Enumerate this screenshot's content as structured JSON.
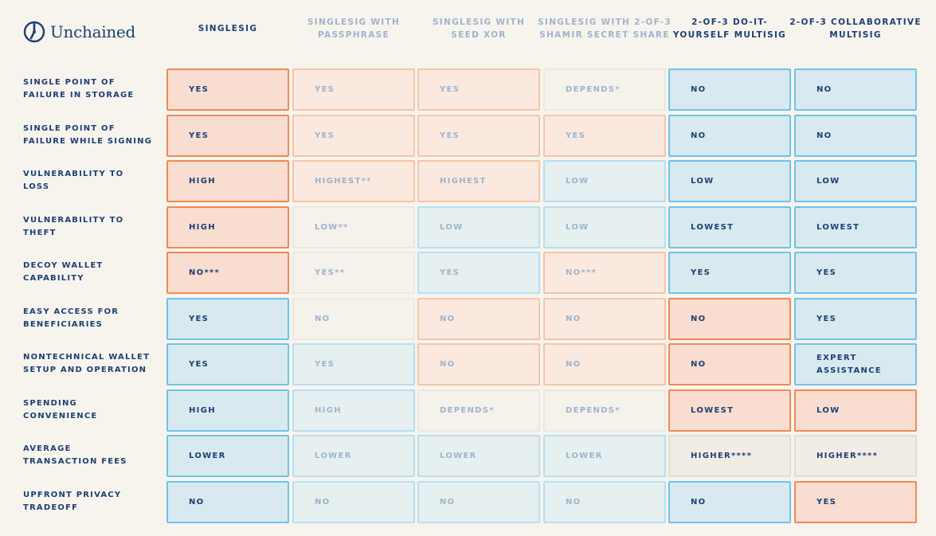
{
  "brand": {
    "name": "Unchained",
    "logo_icon": "unchained-logo-icon"
  },
  "columns": [
    {
      "label": "SINGLESIG",
      "style": "strong"
    },
    {
      "label": "SINGLESIG WITH PASSPHRASE",
      "style": "dim"
    },
    {
      "label": "SINGLESIG WITH SEED XOR",
      "style": "dim"
    },
    {
      "label": "SINGLESIG WITH  2-OF-3 SHAMIR SECRET SHARE",
      "style": "dim"
    },
    {
      "label": "2-OF-3 DO-IT-YOURSELF MULTISIG",
      "style": "strong"
    },
    {
      "label": "2-OF-3 COLLABORATIVE MULTISIG",
      "style": "strong"
    }
  ],
  "rows": [
    {
      "label": "SINGLE POINT OF FAILURE IN STORAGE",
      "cells": [
        {
          "value": "YES",
          "tone": "orange",
          "dim": false
        },
        {
          "value": "YES",
          "tone": "orange",
          "dim": true
        },
        {
          "value": "YES",
          "tone": "orange",
          "dim": true
        },
        {
          "value": "DEPENDS*",
          "tone": "beige",
          "dim": true
        },
        {
          "value": "NO",
          "tone": "blue",
          "dim": false
        },
        {
          "value": "NO",
          "tone": "blue",
          "dim": false
        }
      ]
    },
    {
      "label": "SINGLE POINT OF FAILURE WHILE SIGNING",
      "cells": [
        {
          "value": "YES",
          "tone": "orange",
          "dim": false
        },
        {
          "value": "YES",
          "tone": "orange",
          "dim": true
        },
        {
          "value": "YES",
          "tone": "orange",
          "dim": true
        },
        {
          "value": "YES",
          "tone": "orange",
          "dim": true
        },
        {
          "value": "NO",
          "tone": "blue",
          "dim": false
        },
        {
          "value": "NO",
          "tone": "blue",
          "dim": false
        }
      ]
    },
    {
      "label": "VULNERABILITY TO LOSS",
      "cells": [
        {
          "value": "HIGH",
          "tone": "orange",
          "dim": false
        },
        {
          "value": "HIGHEST**",
          "tone": "orange",
          "dim": true
        },
        {
          "value": "HIGHEST",
          "tone": "orange",
          "dim": true
        },
        {
          "value": "LOW",
          "tone": "blue",
          "dim": true
        },
        {
          "value": "LOW",
          "tone": "blue",
          "dim": false
        },
        {
          "value": "LOW",
          "tone": "blue",
          "dim": false
        }
      ]
    },
    {
      "label": "VULNERABILITY TO THEFT",
      "cells": [
        {
          "value": "HIGH",
          "tone": "orange",
          "dim": false
        },
        {
          "value": "LOW**",
          "tone": "beige",
          "dim": true
        },
        {
          "value": "LOW",
          "tone": "blue",
          "dim": true
        },
        {
          "value": "LOW",
          "tone": "blue",
          "dim": true
        },
        {
          "value": "LOWEST",
          "tone": "blue",
          "dim": false
        },
        {
          "value": "LOWEST",
          "tone": "blue",
          "dim": false
        }
      ]
    },
    {
      "label": "DECOY WALLET CAPABILITY",
      "cells": [
        {
          "value": "NO***",
          "tone": "orange",
          "dim": false
        },
        {
          "value": "YES**",
          "tone": "beige",
          "dim": true
        },
        {
          "value": "YES",
          "tone": "blue",
          "dim": true
        },
        {
          "value": "NO***",
          "tone": "orange",
          "dim": true
        },
        {
          "value": "YES",
          "tone": "blue",
          "dim": false
        },
        {
          "value": "YES",
          "tone": "blue",
          "dim": false
        }
      ]
    },
    {
      "label": "EASY ACCESS FOR BENEFICIARIES",
      "cells": [
        {
          "value": "YES",
          "tone": "blue",
          "dim": false
        },
        {
          "value": "NO",
          "tone": "beige",
          "dim": true
        },
        {
          "value": "NO",
          "tone": "orange",
          "dim": true
        },
        {
          "value": "NO",
          "tone": "orange",
          "dim": true
        },
        {
          "value": "NO",
          "tone": "orange",
          "dim": false
        },
        {
          "value": "YES",
          "tone": "blue",
          "dim": false
        }
      ]
    },
    {
      "label": "NONTECHNICAL WALLET SETUP AND OPERATION",
      "cells": [
        {
          "value": "YES",
          "tone": "blue",
          "dim": false
        },
        {
          "value": "YES",
          "tone": "blue",
          "dim": true
        },
        {
          "value": "NO",
          "tone": "orange",
          "dim": true
        },
        {
          "value": "NO",
          "tone": "orange",
          "dim": true
        },
        {
          "value": "NO",
          "tone": "orange",
          "dim": false
        },
        {
          "value": "EXPERT\nASSISTANCE",
          "tone": "blue",
          "dim": false
        }
      ]
    },
    {
      "label": "SPENDING CONVENIENCE",
      "cells": [
        {
          "value": "HIGH",
          "tone": "blue",
          "dim": false
        },
        {
          "value": "HIGH",
          "tone": "blue",
          "dim": true
        },
        {
          "value": "DEPENDS*",
          "tone": "beige",
          "dim": true
        },
        {
          "value": "DEPENDS*",
          "tone": "beige",
          "dim": true
        },
        {
          "value": "LOWEST",
          "tone": "orange",
          "dim": false
        },
        {
          "value": "LOW",
          "tone": "orange",
          "dim": false
        }
      ]
    },
    {
      "label": "AVERAGE TRANSACTION FEES",
      "cells": [
        {
          "value": "LOWER",
          "tone": "blue",
          "dim": false
        },
        {
          "value": "LOWER",
          "tone": "blue",
          "dim": true
        },
        {
          "value": "LOWER",
          "tone": "blue",
          "dim": true
        },
        {
          "value": "LOWER",
          "tone": "blue",
          "dim": true
        },
        {
          "value": "HIGHER****",
          "tone": "beige",
          "dim": false
        },
        {
          "value": "HIGHER****",
          "tone": "beige",
          "dim": false
        }
      ]
    },
    {
      "label": "UPFRONT PRIVACY TRADEOFF",
      "cells": [
        {
          "value": "NO",
          "tone": "blue",
          "dim": false
        },
        {
          "value": "NO",
          "tone": "blue",
          "dim": true
        },
        {
          "value": "NO",
          "tone": "blue",
          "dim": true
        },
        {
          "value": "NO",
          "tone": "blue",
          "dim": true
        },
        {
          "value": "NO",
          "tone": "blue",
          "dim": false
        },
        {
          "value": "YES",
          "tone": "orange",
          "dim": false
        }
      ]
    }
  ]
}
